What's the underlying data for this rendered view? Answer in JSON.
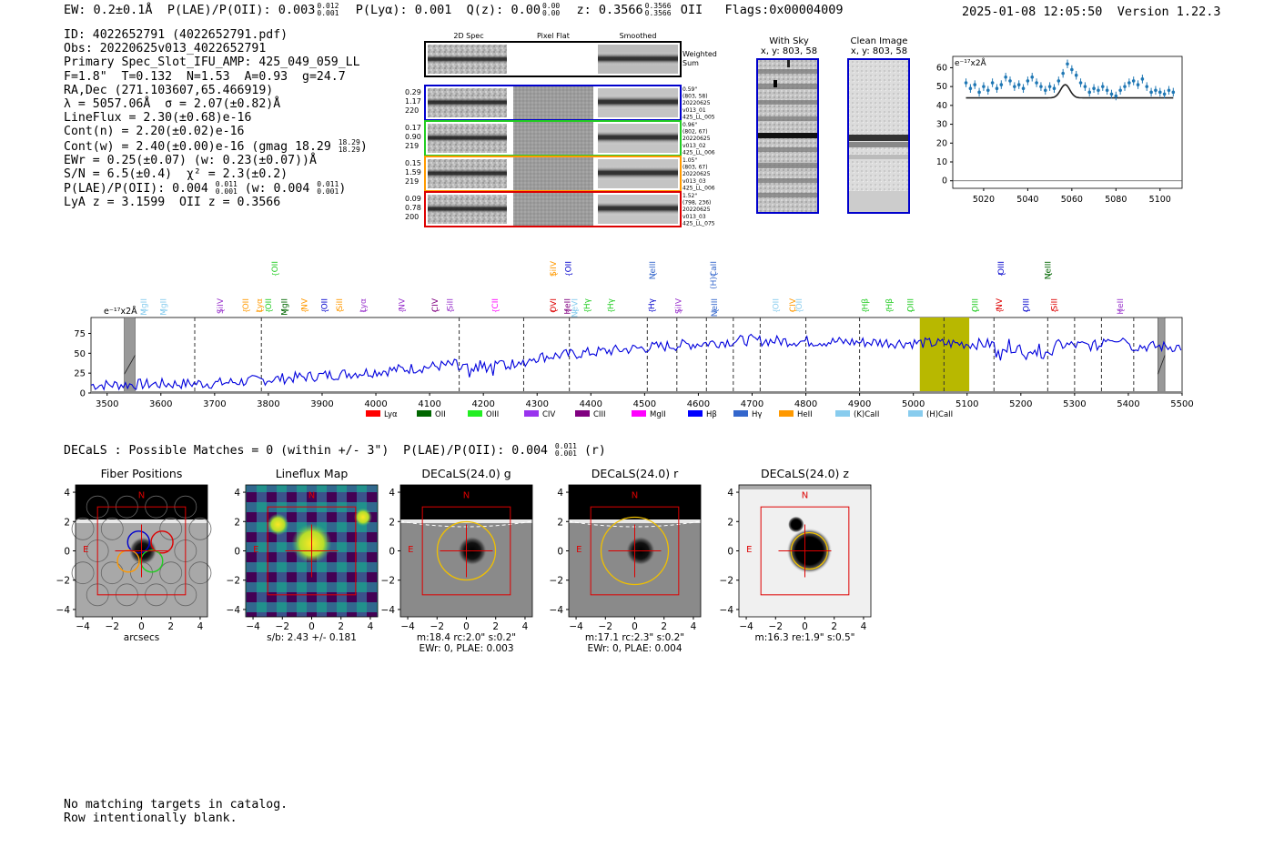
{
  "header": {
    "ew_text": "EW: 0.2±0.1Å",
    "plae_text": "P(LAE)/P(OII): 0.003",
    "plae_hi": "0.012",
    "plae_lo": "0.001",
    "plya_text": "P(Lyα): 0.001",
    "qz_text": "Q(z): 0.00",
    "qz_hi": "0.00",
    "qz_lo": "0.00",
    "z_text": "z: 0.3566",
    "z_hi": "0.3566",
    "z_lo": "0.3566",
    "z_line": "OII",
    "flags": "Flags:0x00004009",
    "datetime": "2025-01-08 12:05:50",
    "version": "Version 1.22.3"
  },
  "info": {
    "id": "ID: 4022652791 (4022652791.pdf)",
    "obs": "Obs: 20220625v013_4022652791",
    "primary": "Primary Spec_Slot_IFU_AMP: 425_049_059_LL",
    "fit": "F=1.8\"  T=0.132  N=1.53  A=0.93  g=24.7",
    "radec": "RA,Dec (271.103607,65.466919)",
    "lambda": "λ = 5057.06Å  σ = 2.07(±0.82)Å",
    "lineflux": "LineFlux = 2.30(±0.68)e-16",
    "contn": "Cont(n) = 2.20(±0.02)e-16",
    "contw": "Cont(w) = 2.40(±0.00)e-16 (gmag 18.29",
    "contw_hi": "18.29",
    "contw_lo": "18.29",
    "contw_close": ")",
    "ewr": "EWr = 0.25(±0.07) (w: 0.23(±0.07))Å",
    "sn": "S/N = 6.5(±0.4)  χ² = 2.3(±0.2)",
    "plae": "P(LAE)/P(OII): 0.004",
    "plae_hi": "0.011",
    "plae_lo": "0.001",
    "plae_w": "(w: 0.004",
    "plae_w_hi": "0.011",
    "plae_w_lo": "0.001",
    "plae_w_close": ")",
    "lyaz": "LyA z = 3.1599  OII z = 0.3566"
  },
  "cutouts": {
    "col_2d": "2D Spec",
    "col_flat": "Pixel Flat",
    "col_smooth": "Smoothed",
    "weighted": "Weighted",
    "sum": "Sum",
    "rows": [
      {
        "color": "#0000cc",
        "left": [
          "0.29",
          "1.17",
          "220"
        ],
        "right": [
          "0.59\"",
          "(803, 58)",
          "20220625",
          "v013_01",
          "425_LL_005"
        ]
      },
      {
        "color": "#22cc22",
        "left": [
          "0.17",
          "0.90",
          "219"
        ],
        "right": [
          "0.96\"",
          "(802, 67)",
          "20220625",
          "v013_02",
          "425_LL_006"
        ]
      },
      {
        "color": "#ff9900",
        "left": [
          "0.15",
          "1.59",
          "219"
        ],
        "right": [
          "1.05\"",
          "(803, 67)",
          "20220625",
          "v013_03",
          "425_LL_006"
        ]
      },
      {
        "color": "#dd0000",
        "left": [
          "0.09",
          "0.78",
          "200"
        ],
        "right": [
          "1.52\"",
          "(798, 236)",
          "20220625",
          "v013_03",
          "425_LL_075"
        ]
      }
    ]
  },
  "sky": {
    "with_sky": "With Sky",
    "with_sky_xy": "x, y: 803, 58",
    "clean": "Clean Image",
    "clean_xy": "x, y: 803, 58"
  },
  "zoom_plot": {
    "unit": "e⁻¹⁷x2Å",
    "yticks": [
      0,
      10,
      20,
      30,
      40,
      50,
      60
    ],
    "xticks": [
      5020,
      5040,
      5060,
      5080,
      5100
    ],
    "xlim": [
      5006,
      5110
    ],
    "ylim": [
      -4,
      66
    ],
    "points": [
      [
        5012,
        52
      ],
      [
        5014,
        49
      ],
      [
        5016,
        51
      ],
      [
        5018,
        47
      ],
      [
        5020,
        50
      ],
      [
        5022,
        48
      ],
      [
        5024,
        52
      ],
      [
        5026,
        49
      ],
      [
        5028,
        51
      ],
      [
        5030,
        55
      ],
      [
        5032,
        53
      ],
      [
        5034,
        50
      ],
      [
        5036,
        51
      ],
      [
        5038,
        49
      ],
      [
        5040,
        53
      ],
      [
        5042,
        55
      ],
      [
        5044,
        52
      ],
      [
        5046,
        50
      ],
      [
        5048,
        48
      ],
      [
        5050,
        50
      ],
      [
        5052,
        49
      ],
      [
        5054,
        53
      ],
      [
        5056,
        57
      ],
      [
        5058,
        62
      ],
      [
        5060,
        59
      ],
      [
        5062,
        56
      ],
      [
        5064,
        52
      ],
      [
        5066,
        50
      ],
      [
        5068,
        47
      ],
      [
        5070,
        49
      ],
      [
        5072,
        48
      ],
      [
        5074,
        50
      ],
      [
        5076,
        48
      ],
      [
        5078,
        46
      ],
      [
        5080,
        45
      ],
      [
        5082,
        48
      ],
      [
        5084,
        50
      ],
      [
        5086,
        52
      ],
      [
        5088,
        53
      ],
      [
        5090,
        51
      ],
      [
        5092,
        54
      ],
      [
        5094,
        50
      ],
      [
        5096,
        47
      ],
      [
        5098,
        48
      ],
      [
        5100,
        47
      ],
      [
        5102,
        46
      ],
      [
        5104,
        48
      ],
      [
        5106,
        47
      ]
    ],
    "fit_base": 44,
    "fit_peak": 51,
    "fit_center": 5057,
    "fit_sigma": 2.1
  },
  "main_spectrum": {
    "unit": "e⁻¹⁷x2Å",
    "xlim": [
      3470,
      5500
    ],
    "ylim": [
      0,
      95
    ],
    "yticks": [
      0,
      25,
      50,
      75
    ],
    "xticks": [
      3500,
      3600,
      3700,
      3800,
      3900,
      4000,
      4100,
      4200,
      4300,
      4400,
      4500,
      4600,
      4700,
      4800,
      4900,
      5000,
      5100,
      5200,
      5300,
      5400,
      5500
    ],
    "highlight": [
      5012,
      5104
    ],
    "center": 5057,
    "masks": [
      [
        3532,
        3552
      ],
      [
        5455,
        5468
      ]
    ],
    "dashed": [
      3663,
      3787,
      4155,
      4275,
      4360,
      4505,
      4560,
      4615,
      4665,
      4715,
      4800,
      4900,
      5057,
      5150,
      5250,
      5300,
      5350,
      5410
    ],
    "lines_upper": [
      {
        "x": 3568,
        "label": "MgII",
        "color": "#88ccee"
      },
      {
        "x": 3605,
        "label": "MgII",
        "color": "#88ccee"
      },
      {
        "x": 3710,
        "label": "SiIV",
        "color": "#9933cc"
      },
      {
        "x": 3758,
        "label": "OII",
        "color": "#ff9900"
      },
      {
        "x": 3783,
        "label": "Lyα",
        "color": "#ff9900"
      },
      {
        "x": 3800,
        "label": "OII",
        "color": "#22cc22"
      },
      {
        "x": 3830,
        "label": "MgII",
        "color": "#006600"
      },
      {
        "x": 3867,
        "label": "NV",
        "color": "#ff9900"
      },
      {
        "x": 3904,
        "label": "OII",
        "color": "#0000cc"
      },
      {
        "x": 3932,
        "label": "SiII",
        "color": "#ff9900"
      },
      {
        "x": 3976,
        "label": "Lyα",
        "color": "#9933cc"
      },
      {
        "x": 4048,
        "label": "NV",
        "color": "#9933cc"
      },
      {
        "x": 4110,
        "label": "CIV",
        "color": "#800080"
      },
      {
        "x": 4138,
        "label": "SiII",
        "color": "#9933cc"
      },
      {
        "x": 4222,
        "label": "CII",
        "color": "#ff00ff"
      },
      {
        "x": 4330,
        "label": "OVI",
        "color": "#dd0000"
      },
      {
        "x": 4356,
        "label": "HeII",
        "color": "#800080"
      },
      {
        "x": 4370,
        "label": "NeVI",
        "color": "#88ccee"
      },
      {
        "x": 4393,
        "label": "Hγ",
        "color": "#22cc22"
      },
      {
        "x": 4437,
        "label": "Hγ",
        "color": "#22cc22"
      },
      {
        "x": 4513,
        "label": "Hγ",
        "color": "#0000cc"
      },
      {
        "x": 4563,
        "label": "SiIV",
        "color": "#9933cc"
      },
      {
        "x": 4630,
        "label": "NeIII",
        "color": "#3366cc"
      },
      {
        "x": 4744,
        "label": "OII",
        "color": "#88ccee"
      },
      {
        "x": 4775,
        "label": "CIV",
        "color": "#ff9900"
      },
      {
        "x": 4787,
        "label": "OII",
        "color": "#88ccee"
      },
      {
        "x": 4910,
        "label": "Hβ",
        "color": "#22cc22"
      },
      {
        "x": 4955,
        "label": "Hβ",
        "color": "#22cc22"
      },
      {
        "x": 4995,
        "label": "OIII",
        "color": "#22cc22"
      },
      {
        "x": 5115,
        "label": "OIII",
        "color": "#22cc22"
      },
      {
        "x": 5160,
        "label": "NV",
        "color": "#dd0000"
      },
      {
        "x": 5210,
        "label": "OIII",
        "color": "#0000cc"
      },
      {
        "x": 5262,
        "label": "SiII",
        "color": "#dd0000"
      },
      {
        "x": 5385,
        "label": "HeII",
        "color": "#9933cc"
      }
    ],
    "lines_top": [
      {
        "x": 3812,
        "label": "OII",
        "color": "#22cc22"
      },
      {
        "x": 4358,
        "label": "OII",
        "color": "#0000cc"
      },
      {
        "x": 4330,
        "label": "SiIV",
        "color": "#ff9900"
      },
      {
        "x": 4515,
        "label": "NeIII",
        "color": "#3366cc"
      },
      {
        "x": 4628,
        "label": "(H)CaII",
        "color": "#3366cc"
      },
      {
        "x": 5163,
        "label": "OIII",
        "color": "#0000cc"
      },
      {
        "x": 5250,
        "label": "NeIII",
        "color": "#006600"
      }
    ],
    "legend": [
      {
        "label": "Lyα",
        "color": "#ff0000"
      },
      {
        "label": "OII",
        "color": "#006600"
      },
      {
        "label": "OIII",
        "color": "#22ee22"
      },
      {
        "label": "CIV",
        "color": "#9933ee"
      },
      {
        "label": "CIII",
        "color": "#800080"
      },
      {
        "label": "MgII",
        "color": "#ff00ff"
      },
      {
        "label": "Hβ",
        "color": "#0000ff"
      },
      {
        "label": "Hγ",
        "color": "#3366cc"
      },
      {
        "label": "HeII",
        "color": "#ff9900"
      },
      {
        "label": "(K)CaII",
        "color": "#88ccee"
      },
      {
        "label": "(H)CaII",
        "color": "#88ccee"
      }
    ]
  },
  "decals_line": {
    "text": "DECaLS : Possible Matches = 0 (within +/- 3\")  P(LAE)/P(OII): 0.004",
    "hi": "0.011",
    "lo": "0.001",
    "suffix": "(r)"
  },
  "thumbs": [
    {
      "title": "Fiber Positions",
      "cap1": "arcsecs",
      "cap2": ""
    },
    {
      "title": "Lineflux Map",
      "cap1": "s/b: 2.43 +/- 0.181",
      "cap2": ""
    },
    {
      "title": "DECaLS(24.0) g",
      "cap1": "m:18.4 rc:2.0\"  s:0.2\"",
      "cap2": "EWr: 0, PLAE: 0.003"
    },
    {
      "title": "DECaLS(24.0) r",
      "cap1": "m:17.1 rc:2.3\"  s:0.2\"",
      "cap2": "EWr: 0, PLAE: 0.004"
    },
    {
      "title": "DECaLS(24.0) z",
      "cap1": "m:16.3  re:1.9\"  s:0.5\"",
      "cap2": ""
    }
  ],
  "thumb_axes": {
    "ticks": [
      -4,
      -2,
      0,
      2,
      4
    ],
    "tick_labels": [
      "−4",
      "−2",
      "0",
      "2",
      "4"
    ],
    "north": "N",
    "east": "E"
  },
  "catalog": {
    "line1": "No matching targets in catalog.",
    "line2": "Row intentionally blank."
  }
}
